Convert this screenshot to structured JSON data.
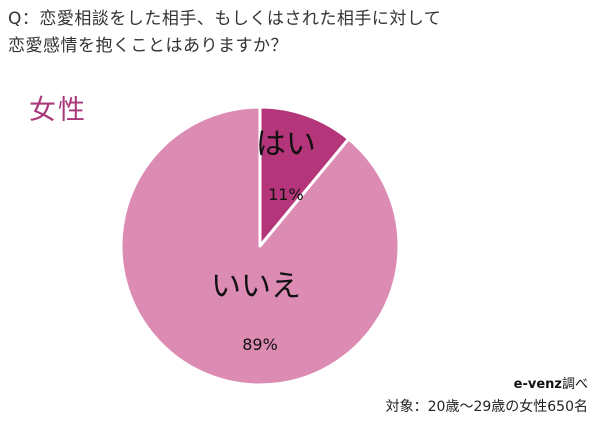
{
  "question": {
    "line1": "Q：恋愛相談をした相手、もしくはされた相手に対して",
    "line2": "恋愛感情を抱くことはありますか？"
  },
  "subject_label": "女性",
  "chart_data": {
    "type": "pie",
    "title": "",
    "slices": [
      {
        "label": "はい",
        "value": 11,
        "value_label": "11%",
        "color": "#b5357a"
      },
      {
        "label": "いいえ",
        "value": 89,
        "value_label": "89%",
        "color": "#dc8bb3"
      }
    ],
    "start_angle_deg": 0,
    "direction": "clockwise",
    "stroke_color": "#ffffff"
  },
  "source": {
    "brand": "e-venz",
    "suffix": "調べ"
  },
  "target_note": "対象：20歳〜29歳の女性650名"
}
